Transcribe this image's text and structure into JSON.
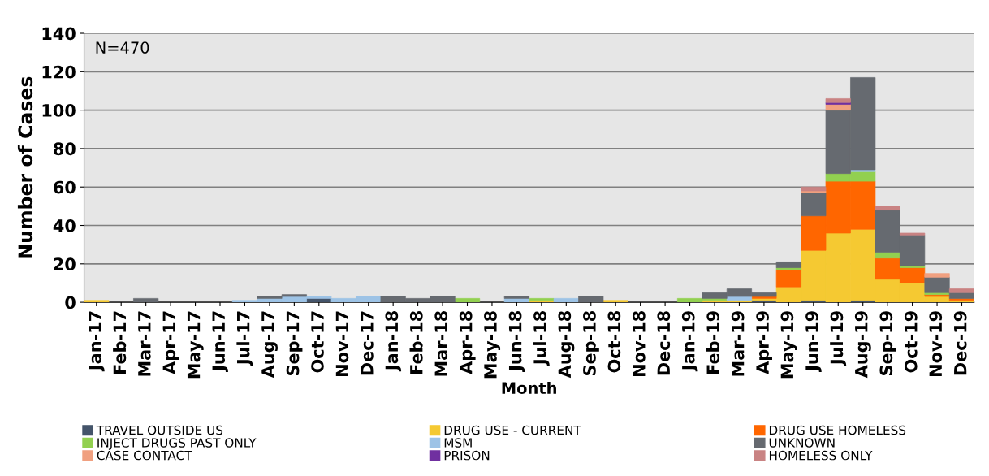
{
  "chart_data": {
    "type": "bar",
    "stacked": true,
    "xlabel": "Month",
    "ylabel": "Number of Cases",
    "annotations": [
      "N=470"
    ],
    "categories": [
      "Jan-17",
      "Feb-17",
      "Mar-17",
      "Apr-17",
      "May-17",
      "Jun-17",
      "Jul-17",
      "Aug-17",
      "Sep-17",
      "Oct-17",
      "Nov-17",
      "Dec-17",
      "Jan-18",
      "Feb-18",
      "Mar-18",
      "Apr-18",
      "May-18",
      "Jun-18",
      "Jul-18",
      "Aug-18",
      "Sep-18",
      "Oct-18",
      "Nov-18",
      "Dec-18",
      "Jan-19",
      "Feb-19",
      "Mar-19",
      "Apr-19",
      "May-19",
      "Jun-19",
      "Jul-19",
      "Aug-19",
      "Sep-19",
      "Oct-19",
      "Nov-19",
      "Dec-19"
    ],
    "series": [
      {
        "name": "TRAVEL OUTSIDE US",
        "color": "#44546a",
        "values": [
          0,
          0,
          0,
          0,
          0,
          0,
          0,
          0,
          0,
          2,
          0,
          0,
          0,
          0,
          0,
          0,
          0,
          0,
          0,
          0,
          0,
          0,
          0,
          0,
          0,
          0,
          0,
          1,
          0,
          1,
          0,
          1,
          0,
          0,
          0,
          0
        ]
      },
      {
        "name": "DRUG USE - CURRENT",
        "color": "#f5c932",
        "values": [
          1,
          0,
          0,
          0,
          0,
          0,
          0,
          0,
          0,
          0,
          0,
          0,
          0,
          0,
          0,
          0,
          0,
          0,
          1,
          0,
          0,
          1,
          0,
          0,
          0,
          1,
          1,
          1,
          8,
          26,
          36,
          37,
          12,
          10,
          3,
          1
        ]
      },
      {
        "name": "DRUG USE HOMELESS",
        "color": "#ff6600",
        "values": [
          0,
          0,
          0,
          0,
          0,
          0,
          0,
          0,
          0,
          0,
          0,
          0,
          0,
          0,
          0,
          0,
          0,
          0,
          0,
          0,
          0,
          0,
          0,
          0,
          0,
          0,
          0,
          1,
          9,
          18,
          27,
          25,
          11,
          8,
          1,
          1
        ]
      },
      {
        "name": "INJECT DRUGS PAST ONLY",
        "color": "#92d050",
        "values": [
          0,
          0,
          0,
          0,
          0,
          0,
          0,
          0,
          0,
          0,
          0,
          0,
          0,
          0,
          0,
          2,
          0,
          0,
          1,
          0,
          0,
          0,
          0,
          0,
          2,
          1,
          0,
          0,
          1,
          0,
          4,
          5,
          3,
          1,
          1,
          0
        ]
      },
      {
        "name": "MSM",
        "color": "#9dc3e6",
        "values": [
          0,
          0,
          0,
          0,
          0,
          0,
          1,
          2,
          3,
          1,
          2,
          3,
          0,
          0,
          0,
          0,
          0,
          2,
          0,
          2,
          0,
          0,
          0,
          0,
          0,
          0,
          2,
          0,
          0,
          0,
          0,
          1,
          0,
          0,
          0,
          0
        ]
      },
      {
        "name": "UNKNOWN",
        "color": "#666a70",
        "values": [
          0,
          0,
          2,
          0,
          0,
          0,
          0,
          1,
          1,
          0,
          0,
          0,
          3,
          2,
          3,
          0,
          0,
          1,
          0,
          0,
          3,
          0,
          0,
          0,
          0,
          3,
          4,
          2,
          3,
          12,
          33,
          48,
          22,
          16,
          8,
          3
        ]
      },
      {
        "name": "CASE CONTACT",
        "color": "#f0a080",
        "values": [
          0,
          0,
          0,
          0,
          0,
          0,
          0,
          0,
          0,
          0,
          0,
          0,
          0,
          0,
          0,
          0,
          0,
          0,
          0,
          0,
          0,
          0,
          0,
          0,
          0,
          0,
          0,
          0,
          0,
          1,
          3,
          0,
          0,
          0,
          2,
          0
        ]
      },
      {
        "name": "PRISON",
        "color": "#7030a0",
        "values": [
          0,
          0,
          0,
          0,
          0,
          0,
          0,
          0,
          0,
          0,
          0,
          0,
          0,
          0,
          0,
          0,
          0,
          0,
          0,
          0,
          0,
          0,
          0,
          0,
          0,
          0,
          0,
          0,
          0,
          0,
          1,
          0,
          0,
          0,
          0,
          0
        ]
      },
      {
        "name": "HOMELESS ONLY",
        "color": "#c98383",
        "values": [
          0,
          0,
          0,
          0,
          0,
          0,
          0,
          0,
          0,
          0,
          0,
          0,
          0,
          0,
          0,
          0,
          0,
          0,
          0,
          0,
          0,
          0,
          0,
          0,
          0,
          0,
          0,
          0,
          0,
          2,
          2,
          0,
          2,
          1,
          0,
          2
        ]
      }
    ],
    "ylim": [
      0,
      140
    ],
    "yticks": [
      0,
      20,
      40,
      60,
      80,
      100,
      120,
      140
    ],
    "grid": "y",
    "legend": "bottom"
  }
}
